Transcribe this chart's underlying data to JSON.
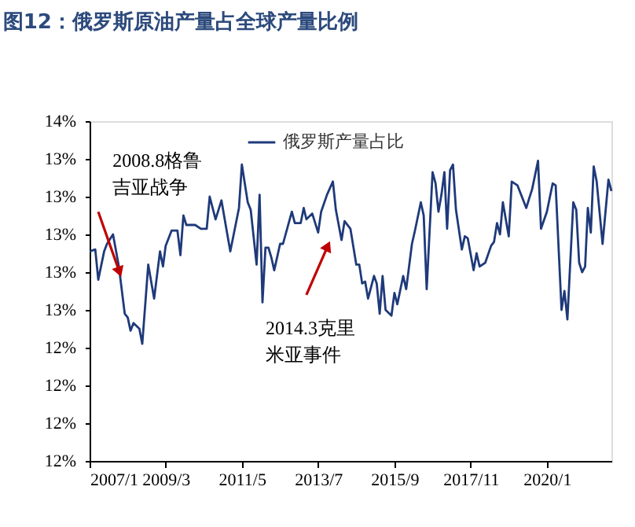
{
  "chart_data": {
    "type": "line",
    "title": "图12：俄罗斯原油产量占全球产量比例",
    "x": [
      "2007-01",
      "2007-03",
      "2007-04",
      "2007-06",
      "2007-07",
      "2007-09",
      "2007-11",
      "2008-01",
      "2008-02",
      "2008-03",
      "2008-04",
      "2008-06",
      "2008-07",
      "2008-09",
      "2008-11",
      "2009-01",
      "2009-02",
      "2009-03",
      "2009-05",
      "2009-07",
      "2009-08",
      "2009-09",
      "2009-10",
      "2010-01",
      "2010-03",
      "2010-05",
      "2010-06",
      "2010-08",
      "2010-10",
      "2010-12",
      "2011-01",
      "2011-04",
      "2011-05",
      "2011-07",
      "2011-08",
      "2011-10",
      "2011-11",
      "2011-12",
      "2012-01",
      "2012-02",
      "2012-03",
      "2012-04",
      "2012-06",
      "2012-07",
      "2012-10",
      "2012-11",
      "2013-01",
      "2013-02",
      "2013-03",
      "2013-05",
      "2013-07",
      "2013-08",
      "2013-10",
      "2013-12",
      "2014-01",
      "2014-03",
      "2014-04",
      "2014-06",
      "2014-08",
      "2014-09",
      "2014-10",
      "2014-11",
      "2014-12",
      "2015-02",
      "2015-03",
      "2015-04",
      "2015-05",
      "2015-06",
      "2015-08",
      "2015-09",
      "2015-10",
      "2015-12",
      "2016-01",
      "2016-03",
      "2016-04",
      "2016-06",
      "2016-07",
      "2016-08",
      "2016-10",
      "2016-11",
      "2016-12",
      "2017-01",
      "2017-02",
      "2017-03",
      "2017-04",
      "2017-05",
      "2017-06",
      "2017-08",
      "2017-09",
      "2017-10",
      "2017-12",
      "2018-01",
      "2018-02",
      "2018-04",
      "2018-06",
      "2018-07",
      "2018-08",
      "2018-09",
      "2018-10",
      "2018-12",
      "2019-01",
      "2019-03",
      "2019-06",
      "2019-07",
      "2019-08",
      "2019-10",
      "2019-11",
      "2020-01",
      "2020-03",
      "2020-04",
      "2020-06",
      "2020-07",
      "2020-08",
      "2020-10",
      "2020-11",
      "2020-12",
      "2021-01",
      "2021-02",
      "2021-03",
      "2021-04",
      "2021-05",
      "2021-06",
      "2021-08",
      "2021-10",
      "2021-11"
    ],
    "series": [
      {
        "name": "俄罗斯产量占比",
        "color": "#1f3a7a",
        "values": [
          12.91,
          12.92,
          12.76,
          12.91,
          12.95,
          13.0,
          12.83,
          12.58,
          12.56,
          12.49,
          12.53,
          12.5,
          12.42,
          12.84,
          12.66,
          12.91,
          12.83,
          12.94,
          13.02,
          13.02,
          12.89,
          13.1,
          13.05,
          13.05,
          13.03,
          13.03,
          13.2,
          13.08,
          13.18,
          13.0,
          12.91,
          13.14,
          13.37,
          13.17,
          13.13,
          12.84,
          13.21,
          12.64,
          12.93,
          12.93,
          12.88,
          12.81,
          12.95,
          12.95,
          13.12,
          13.06,
          13.06,
          13.14,
          13.08,
          13.11,
          13.01,
          13.12,
          13.21,
          13.28,
          13.13,
          12.97,
          13.07,
          13.03,
          12.84,
          12.84,
          12.74,
          12.75,
          12.66,
          12.78,
          12.74,
          12.58,
          12.78,
          12.6,
          12.57,
          12.69,
          12.63,
          12.78,
          12.71,
          12.95,
          13.02,
          13.17,
          13.1,
          12.71,
          13.33,
          13.27,
          13.12,
          13.21,
          13.33,
          13.03,
          13.34,
          13.37,
          13.13,
          12.92,
          12.99,
          12.98,
          12.81,
          12.9,
          12.83,
          12.85,
          12.94,
          12.96,
          13.06,
          13.0,
          13.17,
          12.99,
          13.28,
          13.26,
          13.14,
          13.19,
          13.24,
          13.39,
          13.03,
          13.12,
          13.27,
          13.26,
          12.6,
          12.7,
          12.55,
          13.17,
          13.13,
          12.85,
          12.8,
          12.83,
          13.14,
          13.01,
          13.36,
          13.28,
          12.95,
          13.29,
          13.23
        ]
      }
    ],
    "xlim": [
      "2007-01",
      "2021-11"
    ],
    "xticks": [
      {
        "value": "2007-01",
        "label": "2007/1"
      },
      {
        "value": "2009-03",
        "label": "2009/3"
      },
      {
        "value": "2011-05",
        "label": "2011/5"
      },
      {
        "value": "2013-07",
        "label": "2013/7"
      },
      {
        "value": "2015-09",
        "label": "2015/9"
      },
      {
        "value": "2017-11",
        "label": "2017/11"
      },
      {
        "value": "2020-01",
        "label": "2020/1"
      }
    ],
    "ylim": [
      11.8,
      13.6
    ],
    "yticks": [
      {
        "value": 11.8,
        "label": "12%"
      },
      {
        "value": 12.0,
        "label": "12%"
      },
      {
        "value": 12.2,
        "label": "12%"
      },
      {
        "value": 12.4,
        "label": "12%"
      },
      {
        "value": 12.6,
        "label": "13%"
      },
      {
        "value": 12.8,
        "label": "13%"
      },
      {
        "value": 13.0,
        "label": "13%"
      },
      {
        "value": 13.2,
        "label": "13%"
      },
      {
        "value": 13.4,
        "label": "13%"
      },
      {
        "value": 13.6,
        "label": "14%"
      }
    ],
    "annotations": [
      {
        "text": "2008.8格鲁吉亚战争",
        "x": "2007-11",
        "y": 12.81
      },
      {
        "text": "2014.3克里米亚事件",
        "x": "2013-10",
        "y": 12.93
      }
    ],
    "grid": false,
    "legend": "top",
    "marker": "none",
    "line_style": "solid"
  }
}
